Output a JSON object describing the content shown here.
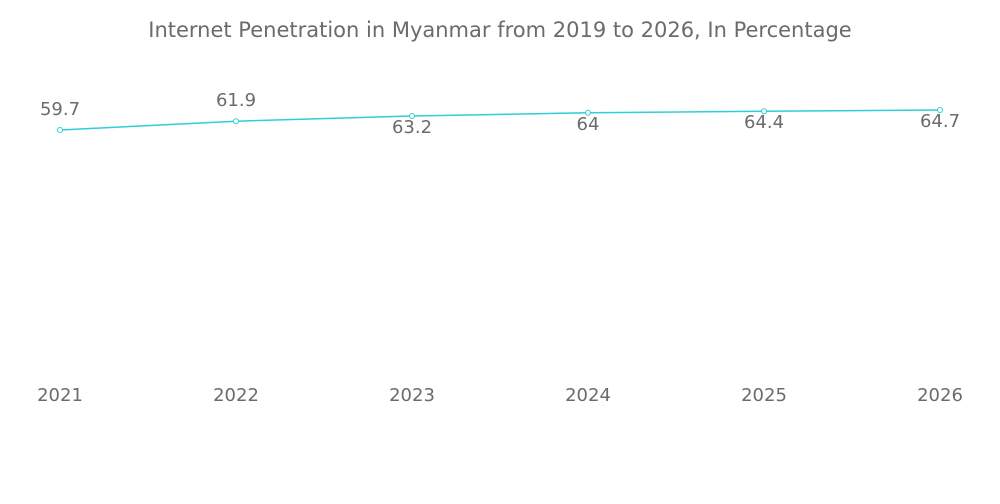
{
  "chart_data": {
    "type": "line",
    "title": "Internet Penetration in Myanmar from 2019 to 2026, In Percentage",
    "categories": [
      "2021",
      "2022",
      "2023",
      "2024",
      "2025",
      "2026"
    ],
    "series": [
      {
        "color": "#2ecfd6",
        "values": [
          59.7,
          61.9,
          63.2,
          64,
          64.4,
          64.7
        ]
      }
    ]
  }
}
